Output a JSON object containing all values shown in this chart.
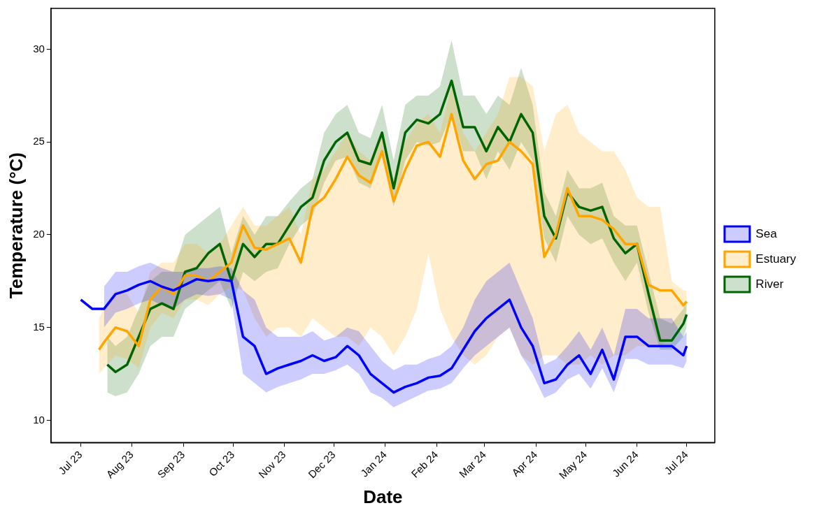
{
  "chart_data": {
    "type": "line",
    "xlabel": "Date",
    "ylabel": "Temperature (°C)",
    "xlim": [
      "2023-06-13",
      "2024-07-18"
    ],
    "xticks": [
      {
        "value": "2023-07-01",
        "label": "Jul 23"
      },
      {
        "value": "2023-08-01",
        "label": "Aug 23"
      },
      {
        "value": "2023-09-01",
        "label": "Sep 23"
      },
      {
        "value": "2023-10-01",
        "label": "Oct 23"
      },
      {
        "value": "2023-11-01",
        "label": "Nov 23"
      },
      {
        "value": "2023-12-01",
        "label": "Dec 23"
      },
      {
        "value": "2024-01-01",
        "label": "Jan 24"
      },
      {
        "value": "2024-02-01",
        "label": "Feb 24"
      },
      {
        "value": "2024-03-01",
        "label": "Mar 24"
      },
      {
        "value": "2024-04-01",
        "label": "Apr 24"
      },
      {
        "value": "2024-05-01",
        "label": "May 24"
      },
      {
        "value": "2024-06-01",
        "label": "Jun 24"
      },
      {
        "value": "2024-07-01",
        "label": "Jul 24"
      }
    ],
    "ylim": [
      8.8,
      32.2
    ],
    "yticks": [
      10,
      15,
      20,
      25,
      30
    ],
    "grid": false,
    "legend": "right",
    "marker": "none",
    "line_style": "solid",
    "series": [
      {
        "name": "Sea",
        "color": "#0000ff",
        "x": [
          "2023-07-01",
          "2023-07-08",
          "2023-07-15",
          "2023-07-22",
          "2023-07-29",
          "2023-08-05",
          "2023-08-12",
          "2023-08-19",
          "2023-08-26",
          "2023-09-02",
          "2023-09-09",
          "2023-09-16",
          "2023-09-23",
          "2023-09-30",
          "2023-10-07",
          "2023-10-14",
          "2023-10-21",
          "2023-10-28",
          "2023-11-04",
          "2023-11-11",
          "2023-11-18",
          "2023-11-25",
          "2023-12-02",
          "2023-12-09",
          "2023-12-16",
          "2023-12-23",
          "2023-12-30",
          "2024-01-06",
          "2024-01-13",
          "2024-01-20",
          "2024-01-27",
          "2024-02-03",
          "2024-02-10",
          "2024-02-17",
          "2024-02-24",
          "2024-03-02",
          "2024-03-09",
          "2024-03-16",
          "2024-03-23",
          "2024-03-30",
          "2024-04-06",
          "2024-04-13",
          "2024-04-20",
          "2024-04-27",
          "2024-05-04",
          "2024-05-11",
          "2024-05-18",
          "2024-05-25",
          "2024-06-01",
          "2024-06-08",
          "2024-06-15",
          "2024-06-22",
          "2024-06-29",
          "2024-07-01"
        ],
        "values": [
          16.5,
          16.0,
          16.0,
          16.8,
          17.0,
          17.3,
          17.5,
          17.2,
          17.0,
          17.3,
          17.6,
          17.5,
          17.6,
          17.5,
          14.5,
          14.0,
          12.5,
          12.8,
          13.0,
          13.2,
          13.5,
          13.2,
          13.4,
          14.0,
          13.5,
          12.5,
          12.0,
          11.5,
          11.8,
          12.0,
          12.3,
          12.4,
          12.8,
          13.8,
          14.8,
          15.5,
          16.0,
          16.5,
          15.0,
          14.0,
          12.0,
          12.2,
          13.0,
          13.5,
          12.5,
          13.8,
          12.2,
          14.5,
          14.5,
          14.0,
          14.0,
          14.0,
          13.5,
          14.0
        ],
        "lower": [
          null,
          null,
          15.0,
          15.8,
          16.0,
          16.3,
          16.5,
          16.2,
          16.0,
          16.5,
          16.8,
          16.7,
          16.8,
          16.5,
          12.5,
          12.0,
          11.5,
          11.8,
          12.0,
          12.2,
          12.5,
          12.5,
          12.7,
          13.0,
          12.5,
          11.5,
          11.2,
          10.7,
          11.0,
          11.3,
          11.6,
          11.7,
          12.0,
          12.8,
          13.5,
          14.0,
          14.5,
          15.0,
          13.5,
          12.5,
          11.2,
          11.5,
          12.2,
          12.5,
          11.7,
          12.8,
          11.5,
          13.3,
          13.3,
          13.0,
          13.0,
          13.0,
          12.8,
          13.2
        ],
        "upper": [
          null,
          null,
          17.2,
          18.0,
          18.0,
          18.3,
          18.5,
          18.2,
          18.0,
          18.0,
          18.2,
          18.2,
          18.3,
          18.2,
          17.0,
          16.5,
          15.0,
          14.5,
          14.5,
          14.5,
          14.8,
          14.3,
          14.5,
          15.0,
          14.8,
          14.0,
          13.2,
          12.7,
          13.0,
          13.0,
          13.3,
          13.5,
          14.0,
          15.0,
          16.5,
          17.5,
          18.0,
          18.5,
          17.0,
          15.5,
          13.0,
          13.3,
          14.0,
          14.8,
          13.8,
          15.0,
          13.5,
          16.0,
          16.0,
          15.5,
          15.5,
          15.5,
          14.5,
          14.8
        ]
      },
      {
        "name": "Estuary",
        "color": "#ffa500",
        "x": [
          "2023-07-12",
          "2023-07-15",
          "2023-07-22",
          "2023-07-29",
          "2023-08-05",
          "2023-08-12",
          "2023-08-19",
          "2023-08-26",
          "2023-09-02",
          "2023-09-09",
          "2023-09-16",
          "2023-09-23",
          "2023-09-30",
          "2023-10-07",
          "2023-10-14",
          "2023-10-21",
          "2023-10-28",
          "2023-11-04",
          "2023-11-11",
          "2023-11-18",
          "2023-11-25",
          "2023-12-02",
          "2023-12-09",
          "2023-12-16",
          "2023-12-23",
          "2023-12-30",
          "2024-01-06",
          "2024-01-13",
          "2024-01-20",
          "2024-01-27",
          "2024-02-03",
          "2024-02-10",
          "2024-02-17",
          "2024-02-24",
          "2024-03-02",
          "2024-03-09",
          "2024-03-16",
          "2024-03-23",
          "2024-03-30",
          "2024-04-06",
          "2024-04-13",
          "2024-04-20",
          "2024-04-27",
          "2024-05-04",
          "2024-05-11",
          "2024-05-18",
          "2024-05-25",
          "2024-06-01",
          "2024-06-08",
          "2024-06-15",
          "2024-06-22",
          "2024-06-29",
          "2024-07-01"
        ],
        "values": [
          13.8,
          14.2,
          15.0,
          14.8,
          14.0,
          16.5,
          17.2,
          16.8,
          17.8,
          17.8,
          17.5,
          18.0,
          18.5,
          20.5,
          19.3,
          19.2,
          19.5,
          19.8,
          18.5,
          21.5,
          22.0,
          23.0,
          24.2,
          23.2,
          22.8,
          24.5,
          21.8,
          23.5,
          24.8,
          25.0,
          24.2,
          26.5,
          24.0,
          23.0,
          23.8,
          24.0,
          25.0,
          24.5,
          23.8,
          18.8,
          20.0,
          22.5,
          21.0,
          21.0,
          20.8,
          20.3,
          19.5,
          19.5,
          17.3,
          17.0,
          17.0,
          16.2,
          16.4
        ],
        "lower": [
          12.5,
          12.8,
          13.5,
          13.3,
          12.8,
          15.0,
          15.8,
          15.5,
          16.5,
          16.5,
          16.2,
          16.8,
          17.2,
          17.0,
          15.5,
          14.5,
          15.0,
          15.0,
          14.5,
          15.5,
          15.0,
          14.5,
          14.5,
          14.0,
          15.0,
          14.5,
          13.5,
          14.5,
          16.0,
          19.0,
          16.0,
          14.5,
          13.5,
          13.0,
          13.5,
          14.5,
          15.0,
          13.5,
          13.0,
          13.5,
          13.5,
          13.0,
          13.0,
          13.5,
          13.0,
          13.5,
          13.5,
          14.0,
          14.0,
          14.0,
          14.5,
          15.5,
          16.0
        ],
        "upper": [
          15.5,
          16.0,
          17.0,
          16.8,
          15.8,
          18.0,
          18.5,
          18.5,
          19.5,
          19.5,
          19.0,
          19.5,
          20.5,
          21.5,
          20.5,
          20.5,
          21.0,
          21.5,
          20.0,
          23.0,
          23.5,
          24.5,
          25.5,
          24.5,
          24.0,
          25.5,
          23.0,
          25.0,
          26.0,
          26.5,
          25.5,
          28.0,
          25.5,
          24.5,
          25.5,
          26.5,
          28.5,
          28.5,
          28.0,
          24.5,
          26.5,
          27.0,
          25.5,
          25.0,
          24.5,
          24.5,
          23.5,
          22.0,
          21.5,
          21.5,
          17.5,
          17.0,
          17.0
        ]
      },
      {
        "name": "River",
        "color": "#006400",
        "x": [
          "2023-07-17",
          "2023-07-22",
          "2023-07-29",
          "2023-08-05",
          "2023-08-12",
          "2023-08-19",
          "2023-08-26",
          "2023-09-02",
          "2023-09-09",
          "2023-09-16",
          "2023-09-23",
          "2023-09-30",
          "2023-10-07",
          "2023-10-14",
          "2023-10-21",
          "2023-10-28",
          "2023-11-04",
          "2023-11-11",
          "2023-11-18",
          "2023-11-25",
          "2023-12-02",
          "2023-12-09",
          "2023-12-16",
          "2023-12-23",
          "2023-12-30",
          "2024-01-06",
          "2024-01-13",
          "2024-01-20",
          "2024-01-27",
          "2024-02-03",
          "2024-02-10",
          "2024-02-17",
          "2024-02-24",
          "2024-03-02",
          "2024-03-09",
          "2024-03-16",
          "2024-03-23",
          "2024-03-30",
          "2024-04-06",
          "2024-04-13",
          "2024-04-20",
          "2024-04-27",
          "2024-05-04",
          "2024-05-11",
          "2024-05-18",
          "2024-05-25",
          "2024-06-01",
          "2024-06-08",
          "2024-06-15",
          "2024-06-22",
          "2024-06-29",
          "2024-07-01"
        ],
        "values": [
          13.0,
          12.6,
          13.0,
          14.5,
          16.0,
          16.3,
          16.0,
          18.0,
          18.2,
          19.0,
          19.5,
          17.5,
          19.5,
          18.8,
          19.5,
          19.5,
          20.5,
          21.5,
          22.0,
          24.0,
          25.0,
          25.5,
          24.0,
          23.8,
          25.5,
          22.5,
          25.5,
          26.2,
          26.0,
          26.5,
          28.3,
          25.8,
          25.8,
          24.5,
          25.8,
          25.0,
          26.5,
          25.5,
          21.0,
          19.8,
          22.3,
          21.5,
          21.3,
          21.5,
          19.8,
          19.0,
          19.5,
          16.8,
          14.3,
          14.3,
          15.2,
          15.7
        ],
        "lower": [
          11.5,
          11.3,
          11.5,
          12.5,
          14.0,
          14.5,
          14.5,
          16.0,
          16.5,
          17.0,
          17.5,
          16.0,
          18.0,
          17.5,
          18.0,
          18.2,
          19.5,
          20.5,
          21.0,
          22.8,
          24.0,
          24.2,
          22.8,
          22.5,
          24.3,
          21.5,
          24.0,
          25.0,
          24.8,
          25.0,
          26.5,
          24.5,
          24.5,
          23.0,
          24.5,
          23.5,
          25.0,
          24.0,
          19.8,
          18.5,
          21.0,
          20.0,
          19.5,
          19.8,
          18.5,
          17.5,
          18.5,
          15.8,
          13.8,
          13.8,
          14.5,
          15.0
        ],
        "upper": [
          14.5,
          14.0,
          14.5,
          16.0,
          17.5,
          18.0,
          18.0,
          20.0,
          20.5,
          21.0,
          21.5,
          19.0,
          21.0,
          20.0,
          21.0,
          21.0,
          21.8,
          22.5,
          23.0,
          25.5,
          26.5,
          27.0,
          25.5,
          25.2,
          27.0,
          24.0,
          27.0,
          27.5,
          27.5,
          28.0,
          30.5,
          27.5,
          27.5,
          26.5,
          27.5,
          27.0,
          29.0,
          27.0,
          22.3,
          21.0,
          23.5,
          22.5,
          22.5,
          22.8,
          21.0,
          20.5,
          20.5,
          18.0,
          15.5,
          15.2,
          16.0,
          16.5
        ]
      }
    ]
  }
}
